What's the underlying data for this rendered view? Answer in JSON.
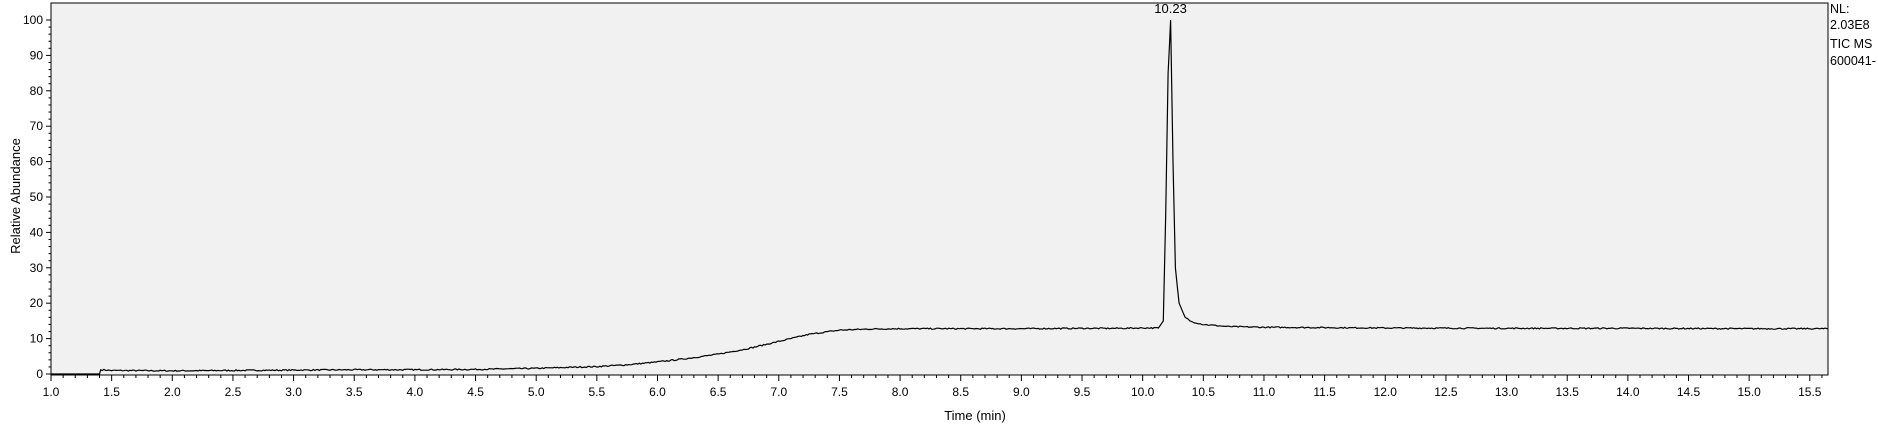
{
  "chart_data": {
    "type": "line",
    "title": "",
    "xlabel": "Time (min)",
    "ylabel": "Relative Abundance",
    "xlim": [
      1.0,
      15.65
    ],
    "ylim": [
      0,
      100
    ],
    "x_ticks": [
      1.0,
      1.5,
      2.0,
      2.5,
      3.0,
      3.5,
      4.0,
      4.5,
      5.0,
      5.5,
      6.0,
      6.5,
      7.0,
      7.5,
      8.0,
      8.5,
      9.0,
      9.5,
      10.0,
      10.5,
      11.0,
      11.5,
      12.0,
      12.5,
      13.0,
      13.5,
      14.0,
      14.5,
      15.0,
      15.5
    ],
    "x_tick_labels": [
      "1.0",
      "1.5",
      "2.0",
      "2.5",
      "3.0",
      "3.5",
      "4.0",
      "4.5",
      "5.0",
      "5.5",
      "6.0",
      "6.5",
      "7.0",
      "7.5",
      "8.0",
      "8.5",
      "9.0",
      "9.5",
      "10.0",
      "10.5",
      "11.0",
      "11.5",
      "12.0",
      "12.5",
      "13.0",
      "13.5",
      "14.0",
      "14.5",
      "15.0",
      "15.5"
    ],
    "y_ticks": [
      0,
      10,
      20,
      30,
      40,
      50,
      60,
      70,
      80,
      90,
      100
    ],
    "y_tick_labels": [
      "0",
      "10",
      "20",
      "30",
      "40",
      "50",
      "60",
      "70",
      "80",
      "90",
      "100"
    ],
    "grid": false,
    "series": [
      {
        "x": [
          1.0,
          1.4,
          1.41,
          1.5,
          2.0,
          2.5,
          3.0,
          3.5,
          4.0,
          4.5,
          5.0,
          5.5,
          5.75,
          6.0,
          6.25,
          6.5,
          6.75,
          7.0,
          7.25,
          7.5,
          7.75,
          8.0,
          8.5,
          9.0,
          9.5,
          9.8,
          10.0,
          10.13,
          10.17,
          10.19,
          10.21,
          10.23,
          10.25,
          10.27,
          10.3,
          10.35,
          10.4,
          10.5,
          10.7,
          11.0,
          12.0,
          13.0,
          14.0,
          15.0,
          15.65
        ],
        "y": [
          0.0,
          0.0,
          1.2,
          1.0,
          0.9,
          1.0,
          1.1,
          1.2,
          1.2,
          1.3,
          1.6,
          2.1,
          2.6,
          3.4,
          4.4,
          5.6,
          7.2,
          9.2,
          11.2,
          12.4,
          12.7,
          12.8,
          12.8,
          12.8,
          12.9,
          12.9,
          13.0,
          13.0,
          15.0,
          45.0,
          85.0,
          100.0,
          60.0,
          30.0,
          20.0,
          16.0,
          14.8,
          14.0,
          13.4,
          13.2,
          13.0,
          12.9,
          12.9,
          12.8,
          12.8
        ],
        "color": "#000000"
      }
    ],
    "annotations": [
      {
        "text": "10.23",
        "x": 10.23,
        "y": 100
      }
    ],
    "side_text": [
      "NL:",
      "2.03E8",
      "TIC  MS",
      "600041-"
    ]
  }
}
